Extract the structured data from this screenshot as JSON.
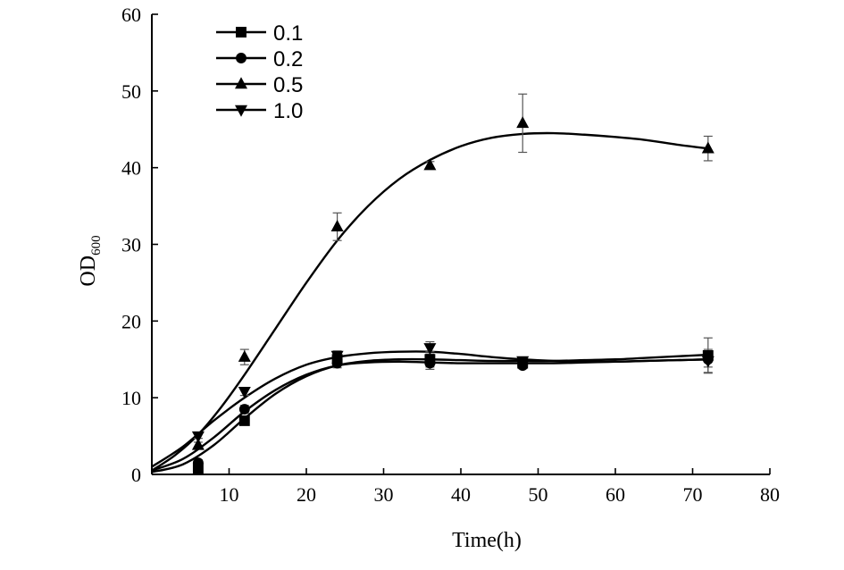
{
  "chart_data": {
    "type": "line",
    "title": "",
    "xlabel": "Time(h)",
    "ylabel_main": "OD",
    "ylabel_sub": "600",
    "xlim": [
      0,
      80
    ],
    "ylim": [
      0,
      60
    ],
    "xticks": [
      10,
      20,
      30,
      40,
      50,
      60,
      70,
      80
    ],
    "yticks": [
      0,
      10,
      20,
      30,
      40,
      50,
      60
    ],
    "x": [
      6,
      12,
      24,
      36,
      48,
      72
    ],
    "legend_position": "top-left",
    "series": [
      {
        "name": "0.1",
        "marker": "square",
        "values": [
          0.8,
          7.0,
          15.0,
          15.0,
          14.5,
          15.5
        ],
        "errors": [
          0.5,
          0.5,
          0.8,
          1.0,
          0.5,
          2.3
        ],
        "curve": [
          [
            0,
            0.3
          ],
          [
            4,
            1.3
          ],
          [
            8,
            3.8
          ],
          [
            12,
            7.3
          ],
          [
            16,
            10.5
          ],
          [
            20,
            12.8
          ],
          [
            24,
            14.2
          ],
          [
            28,
            14.8
          ],
          [
            32,
            15.0
          ],
          [
            36,
            15.0
          ],
          [
            40,
            14.9
          ],
          [
            44,
            14.8
          ],
          [
            48,
            14.8
          ],
          [
            52,
            14.8
          ],
          [
            56,
            14.9
          ],
          [
            60,
            15.0
          ],
          [
            64,
            15.2
          ],
          [
            68,
            15.4
          ],
          [
            72,
            15.6
          ]
        ]
      },
      {
        "name": "0.2",
        "marker": "circle",
        "values": [
          1.5,
          8.5,
          14.5,
          14.5,
          14.2,
          15.0
        ],
        "errors": [
          0.4,
          0.5,
          0.6,
          0.8,
          0.4,
          1.0
        ],
        "curve": [
          [
            0,
            0.5
          ],
          [
            4,
            2.0
          ],
          [
            8,
            4.8
          ],
          [
            12,
            8.2
          ],
          [
            16,
            11.0
          ],
          [
            20,
            13.0
          ],
          [
            24,
            14.2
          ],
          [
            28,
            14.6
          ],
          [
            32,
            14.7
          ],
          [
            36,
            14.6
          ],
          [
            40,
            14.5
          ],
          [
            44,
            14.5
          ],
          [
            48,
            14.5
          ],
          [
            52,
            14.5
          ],
          [
            56,
            14.6
          ],
          [
            60,
            14.7
          ],
          [
            64,
            14.8
          ],
          [
            68,
            14.9
          ],
          [
            72,
            15.0
          ]
        ]
      },
      {
        "name": "0.5",
        "marker": "triangle-up",
        "values": [
          3.8,
          15.3,
          32.3,
          40.3,
          45.8,
          42.5
        ],
        "errors": [
          0.4,
          1.0,
          1.8,
          0.5,
          3.8,
          1.6
        ],
        "curve": [
          [
            0,
            0.5
          ],
          [
            3,
            2.5
          ],
          [
            6,
            5.2
          ],
          [
            9,
            8.8
          ],
          [
            12,
            13.0
          ],
          [
            16,
            19.0
          ],
          [
            20,
            25.0
          ],
          [
            24,
            30.5
          ],
          [
            28,
            35.0
          ],
          [
            32,
            38.5
          ],
          [
            36,
            41.0
          ],
          [
            40,
            42.8
          ],
          [
            44,
            43.9
          ],
          [
            48,
            44.4
          ],
          [
            52,
            44.5
          ],
          [
            56,
            44.3
          ],
          [
            60,
            44.0
          ],
          [
            64,
            43.6
          ],
          [
            68,
            43.0
          ],
          [
            72,
            42.5
          ]
        ]
      },
      {
        "name": "1.0",
        "marker": "triangle-down",
        "values": [
          5.0,
          10.8,
          15.5,
          16.5,
          14.8,
          14.8
        ],
        "errors": [
          0.3,
          0.5,
          0.6,
          0.8,
          0.4,
          1.5
        ],
        "curve": [
          [
            0,
            1.0
          ],
          [
            4,
            3.6
          ],
          [
            8,
            7.0
          ],
          [
            12,
            10.0
          ],
          [
            16,
            12.5
          ],
          [
            20,
            14.3
          ],
          [
            24,
            15.3
          ],
          [
            28,
            15.8
          ],
          [
            32,
            16.0
          ],
          [
            36,
            16.0
          ],
          [
            40,
            15.7
          ],
          [
            44,
            15.3
          ],
          [
            48,
            15.0
          ],
          [
            52,
            14.8
          ],
          [
            56,
            14.7
          ],
          [
            60,
            14.7
          ],
          [
            64,
            14.8
          ],
          [
            68,
            14.9
          ],
          [
            72,
            15.0
          ]
        ]
      }
    ]
  }
}
